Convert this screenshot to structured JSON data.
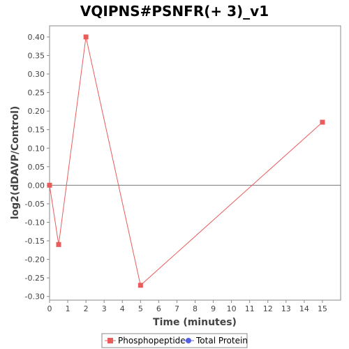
{
  "chart_data": {
    "type": "line",
    "title": "VQIPNS#PSNFR(+ 3)_v1",
    "xlabel": "Time (minutes)",
    "ylabel": "log2(dDAVP/Control)",
    "xlim": [
      0,
      16
    ],
    "ylim": [
      -0.31,
      0.43
    ],
    "xticks": [
      0,
      1,
      2,
      3,
      4,
      5,
      6,
      7,
      8,
      9,
      10,
      11,
      12,
      13,
      14,
      15
    ],
    "yticks": [
      0.4,
      0.35,
      0.3,
      0.25,
      0.2,
      0.15,
      0.1,
      0.05,
      0.0,
      -0.05,
      -0.1,
      -0.15,
      -0.2,
      -0.25,
      -0.3
    ],
    "ytick_labels": [
      "0.40",
      "0.35",
      "0.30",
      "0.25",
      "0.20",
      "0.15",
      "0.10",
      "0.05",
      "0.00",
      "-0.05",
      "-0.10",
      "-0.15",
      "-0.20",
      "-0.25",
      "-0.30"
    ],
    "zero_line": true,
    "grid": false,
    "legend_position": "bottom",
    "series": [
      {
        "name": "Phosphopeptide",
        "color": "#e85c5c",
        "marker": "square",
        "x": [
          0,
          0.5,
          2,
          5,
          15
        ],
        "y": [
          0.0,
          -0.16,
          0.4,
          -0.27,
          0.17
        ]
      },
      {
        "name": "Total Protein",
        "color": "#5560e6",
        "marker": "circle",
        "x": [],
        "y": []
      }
    ]
  }
}
